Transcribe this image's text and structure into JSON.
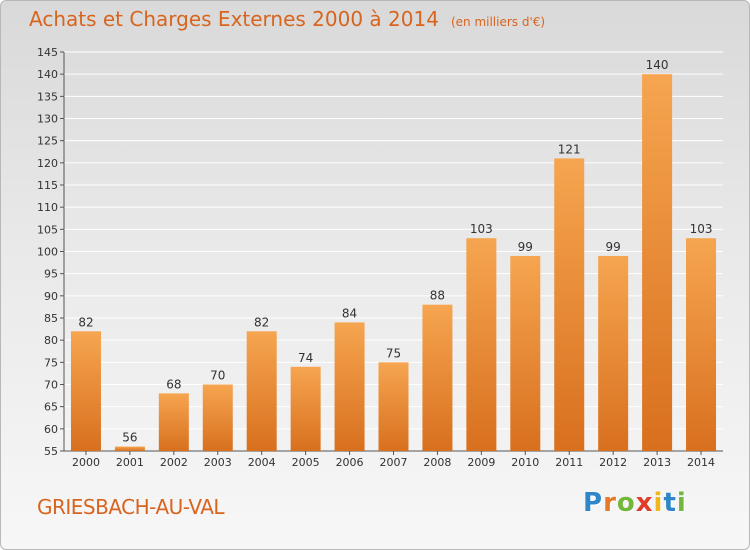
{
  "header": {
    "title": "Achats et Charges Externes 2000 à 2014",
    "subtitle": "(en milliers d'€)"
  },
  "footer": {
    "commune": "GRIESBACH-AU-VAL",
    "logo_letters": [
      {
        "ch": "P",
        "color": "#2e86c9"
      },
      {
        "ch": "r",
        "color": "#e8782a"
      },
      {
        "ch": "o",
        "color": "#73b63c"
      },
      {
        "ch": "x",
        "color": "#e23b2a"
      },
      {
        "ch": "i",
        "color": "#f2b51c"
      },
      {
        "ch": "t",
        "color": "#2e86c9"
      },
      {
        "ch": "i",
        "color": "#73b63c"
      }
    ]
  },
  "chart_data": {
    "type": "bar",
    "title": "Achats et Charges Externes 2000 à 2014",
    "subtitle": "(en milliers d'€)",
    "categories": [
      "2000",
      "2001",
      "2002",
      "2003",
      "2004",
      "2005",
      "2006",
      "2007",
      "2008",
      "2009",
      "2010",
      "2011",
      "2012",
      "2013",
      "2014"
    ],
    "values": [
      82,
      56,
      68,
      70,
      82,
      74,
      84,
      75,
      88,
      103,
      99,
      121,
      99,
      140,
      103
    ],
    "ylim": [
      55,
      145
    ],
    "yticks": [
      55,
      60,
      65,
      70,
      75,
      80,
      85,
      90,
      95,
      100,
      105,
      110,
      115,
      120,
      125,
      130,
      135,
      140,
      145
    ],
    "grid": true,
    "bar_color_top": "#f6a550",
    "bar_color_bottom": "#d8701e",
    "legend": "none"
  }
}
